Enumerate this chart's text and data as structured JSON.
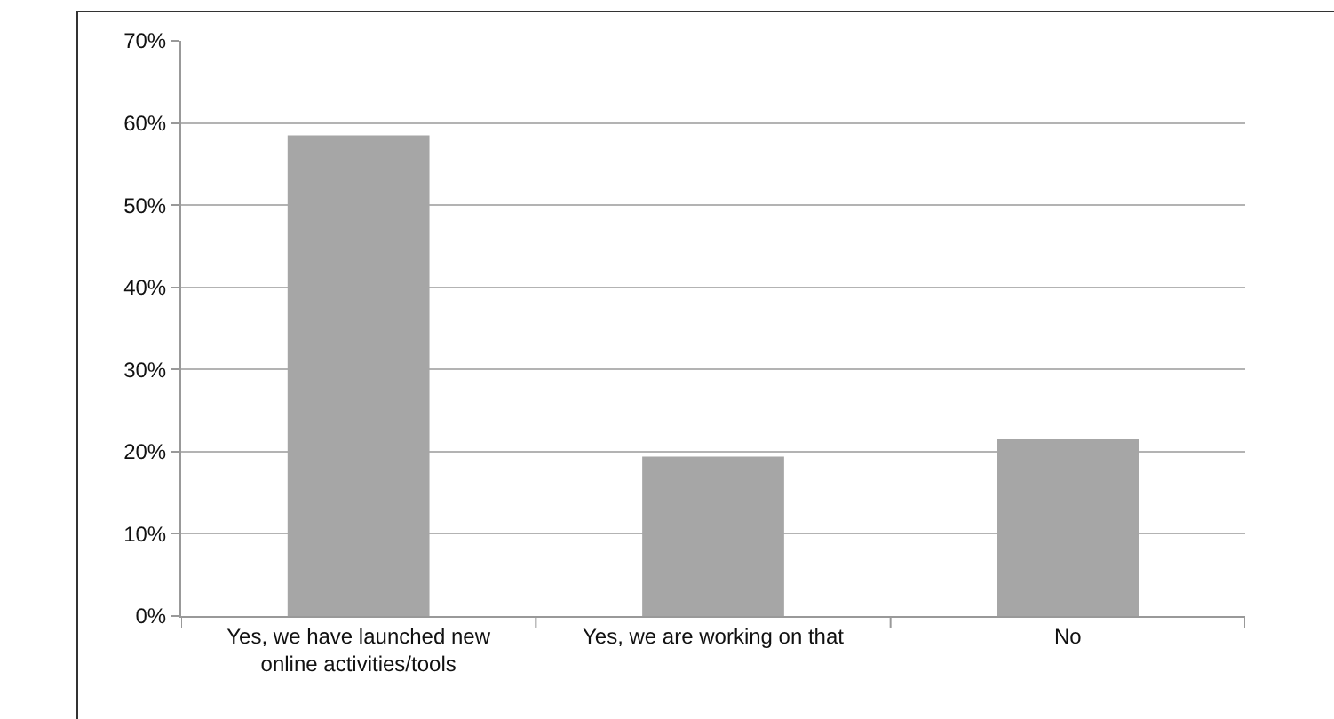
{
  "chart_data": {
    "type": "bar",
    "categories": [
      "Yes, we have launched new online activities/tools",
      "Yes, we are working on that",
      "No"
    ],
    "values": [
      58.5,
      19.4,
      21.6
    ],
    "color": "#a6a6a6",
    "ylim": [
      0,
      70
    ],
    "yticks": [
      {
        "value": 0,
        "label": "0%"
      },
      {
        "value": 10,
        "label": "10%"
      },
      {
        "value": 20,
        "label": "20%"
      },
      {
        "value": 30,
        "label": "30%"
      },
      {
        "value": 40,
        "label": "40%"
      },
      {
        "value": 50,
        "label": "50%"
      },
      {
        "value": 60,
        "label": "60%"
      },
      {
        "value": 70,
        "label": "70%"
      }
    ],
    "grid": "y"
  }
}
